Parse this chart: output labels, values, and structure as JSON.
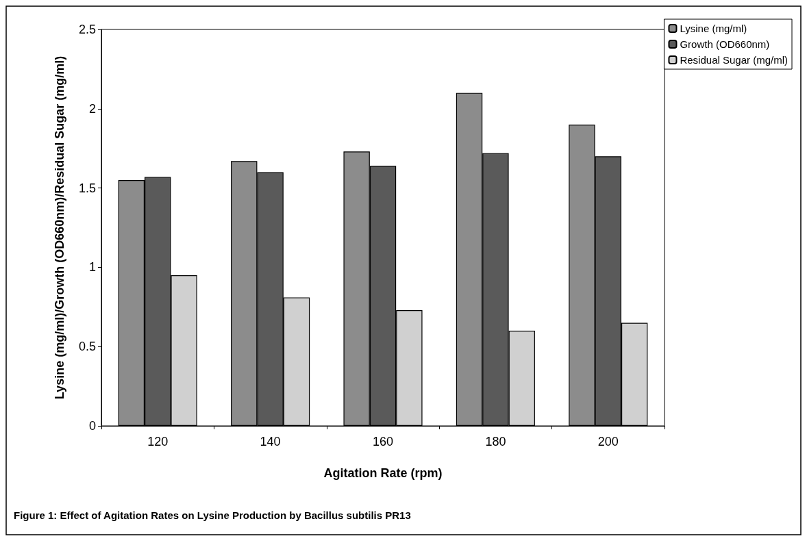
{
  "chart_data": {
    "type": "bar",
    "categories": [
      "120",
      "140",
      "160",
      "180",
      "200"
    ],
    "series": [
      {
        "name": "Lysine (mg/ml)",
        "color": "#8c8c8c",
        "values": [
          1.55,
          1.67,
          1.73,
          2.1,
          1.9
        ]
      },
      {
        "name": "Growth (OD660nm)",
        "color": "#5a5a5a",
        "values": [
          1.57,
          1.6,
          1.64,
          1.72,
          1.7
        ]
      },
      {
        "name": "Residual Sugar (mg/ml)",
        "color": "#d0d0d0",
        "values": [
          0.95,
          0.81,
          0.73,
          0.6,
          0.65
        ]
      }
    ],
    "xlabel": "Agitation Rate (rpm)",
    "ylabel": "Lysine (mg/ml)/Growth (OD660nm)/Residual Sugar (mg/ml)",
    "ylim": [
      0,
      2.5
    ],
    "yticks": [
      0,
      0.5,
      1,
      1.5,
      2,
      2.5
    ],
    "grid": false,
    "legend": "top right",
    "annotations": [
      "Figure 1: Effect of Agitation Rates on Lysine Production by Bacillus subtilis PR13"
    ]
  }
}
